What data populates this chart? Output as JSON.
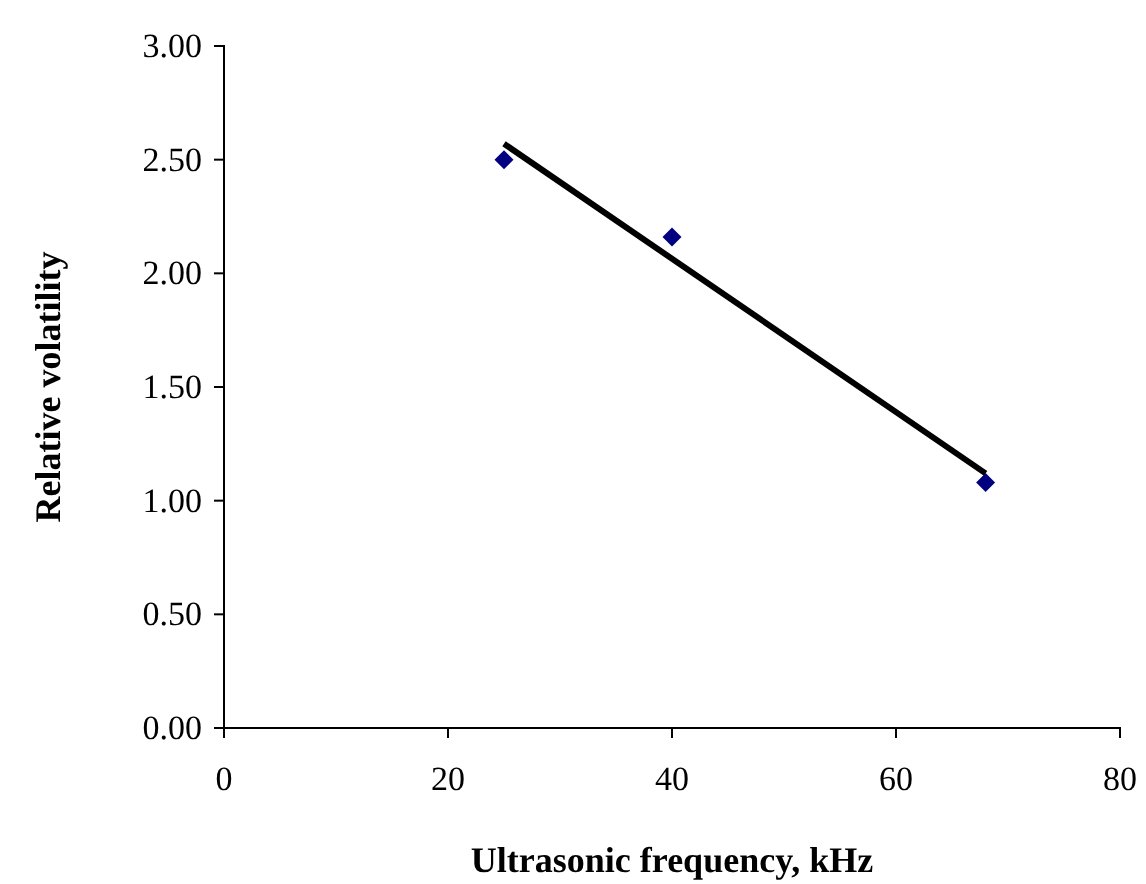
{
  "chart_data": {
    "type": "scatter",
    "xlabel": "Ultrasonic frequency, kHz",
    "ylabel": "Relative volatility",
    "xlim": [
      0,
      80
    ],
    "xticks": [
      0,
      20,
      40,
      60,
      80
    ],
    "ylim": [
      0,
      3
    ],
    "yticks": [
      {
        "value": 0,
        "label": "0.00"
      },
      {
        "value": 0.5,
        "label": "0.50"
      },
      {
        "value": 1,
        "label": "1.00"
      },
      {
        "value": 1.5,
        "label": "1.50"
      },
      {
        "value": 2,
        "label": "2.00"
      },
      {
        "value": 2.5,
        "label": "2.50"
      },
      {
        "value": 3,
        "label": "3.00"
      }
    ],
    "grid": false,
    "series": [
      {
        "color": "#000080",
        "marker": "diamond",
        "x": [
          25,
          40,
          68
        ],
        "values": [
          2.5,
          2.16,
          1.08
        ]
      },
      {
        "type": "line",
        "color": "#000000",
        "marker": "none",
        "line_style": "solid",
        "x": [
          25,
          68
        ],
        "values": [
          2.57,
          1.12
        ]
      }
    ]
  }
}
